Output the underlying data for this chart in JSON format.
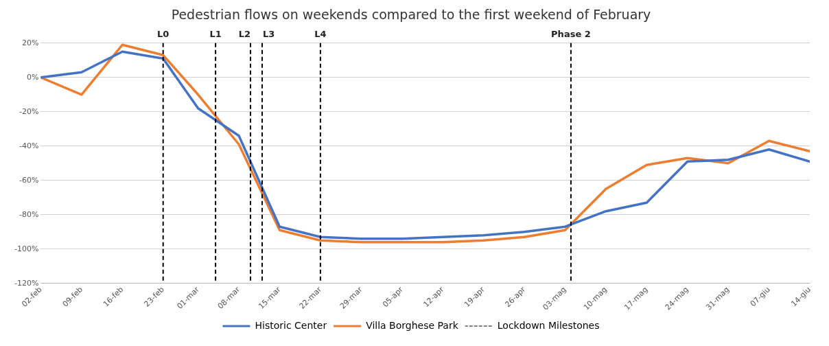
{
  "chart_data": {
    "type": "line",
    "title": "Pedestrian flows on weekends compared to the first weekend of February",
    "x": [
      "--02-02",
      "--02-09",
      "--02-16",
      "--02-23",
      "--03-01",
      "--03-08",
      "--03-15",
      "--03-22",
      "--03-29",
      "--04-05",
      "--04-12",
      "--04-19",
      "--04-26",
      "--05-03",
      "--05-10",
      "--05-17",
      "--05-24",
      "--05-31",
      "--06-07",
      "--06-14"
    ],
    "series": [
      {
        "name": "Historic Center",
        "color": "#4472c4",
        "values": [
          0,
          3,
          15,
          11,
          -18,
          -34,
          -87,
          -93,
          -94,
          -94,
          -93,
          -92,
          -90,
          -87,
          -78,
          -73,
          -49,
          -48,
          -42,
          -49
        ]
      },
      {
        "name": "Villa Borghese Park",
        "color": "#ed7d31",
        "values": [
          0,
          -10,
          19,
          13,
          -10,
          -39,
          -89,
          -95,
          -96,
          -96,
          -96,
          -95,
          -93,
          -89,
          -65,
          -51,
          -47,
          -50,
          -37,
          -43
        ]
      }
    ],
    "xlim": [
      "--02-02",
      "--06-14"
    ],
    "xticks": [
      {
        "value": "--02-02",
        "label": "02-feb"
      },
      {
        "value": "--02-09",
        "label": "09-feb"
      },
      {
        "value": "--02-16",
        "label": "16-feb"
      },
      {
        "value": "--02-23",
        "label": "23-feb"
      },
      {
        "value": "--03-01",
        "label": "01-mar"
      },
      {
        "value": "--03-08",
        "label": "08-mar"
      },
      {
        "value": "--03-15",
        "label": "15-mar"
      },
      {
        "value": "--03-22",
        "label": "22-mar"
      },
      {
        "value": "--03-29",
        "label": "29-mar"
      },
      {
        "value": "--04-05",
        "label": "05-apr"
      },
      {
        "value": "--04-12",
        "label": "12-apr"
      },
      {
        "value": "--04-19",
        "label": "19-apr"
      },
      {
        "value": "--04-26",
        "label": "26-apr"
      },
      {
        "value": "--05-03",
        "label": "03-mag"
      },
      {
        "value": "--05-10",
        "label": "10-mag"
      },
      {
        "value": "--05-17",
        "label": "17-mag"
      },
      {
        "value": "--05-24",
        "label": "24-mag"
      },
      {
        "value": "--05-31",
        "label": "31-mag"
      },
      {
        "value": "--06-07",
        "label": "07-giu"
      },
      {
        "value": "--06-14",
        "label": "14-giu"
      }
    ],
    "ylim": [
      -120,
      20
    ],
    "yticks": [
      {
        "value": -120,
        "label": "-120%"
      },
      {
        "value": -100,
        "label": "-100%"
      },
      {
        "value": -80,
        "label": "-80%"
      },
      {
        "value": -60,
        "label": "-60%"
      },
      {
        "value": -40,
        "label": "-40%"
      },
      {
        "value": -20,
        "label": "-20%"
      },
      {
        "value": 0,
        "label": "0%"
      },
      {
        "value": 20,
        "label": "20%"
      }
    ],
    "ref_lines": [
      {
        "axis": "x",
        "value": "--02-23",
        "label": "L0",
        "color": "#000000",
        "line_style": "dashed"
      },
      {
        "axis": "x",
        "value": "--03-04",
        "label": "L1",
        "color": "#000000",
        "line_style": "dashed"
      },
      {
        "axis": "x",
        "value": "--03-10",
        "label": "L2",
        "color": "#000000",
        "line_style": "dashed"
      },
      {
        "axis": "x",
        "value": "--03-12",
        "label": "L3",
        "color": "#000000",
        "line_style": "dashed"
      },
      {
        "axis": "x",
        "value": "--03-22",
        "label": "L4",
        "color": "#000000",
        "line_style": "dashed"
      },
      {
        "axis": "x",
        "value": "--05-04",
        "label": "Phase 2",
        "color": "#000000",
        "line_style": "dashed"
      }
    ],
    "annotations": [
      "Lockdown Milestones"
    ],
    "grid": "y",
    "legend": "bottom",
    "marker": "none",
    "line_style": "solid"
  }
}
